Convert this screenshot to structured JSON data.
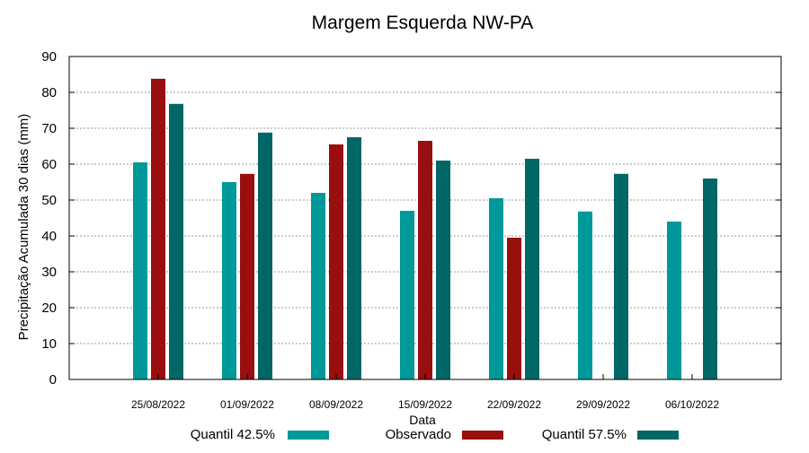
{
  "chart_data": {
    "type": "bar",
    "title": "Margem Esquerda NW-PA",
    "xlabel": "Data",
    "ylabel": "Precipitação Acumulada 30 dias (mm)",
    "ylim": [
      0,
      90
    ],
    "yticks": [
      0,
      10,
      20,
      30,
      40,
      50,
      60,
      70,
      80,
      90
    ],
    "grid": true,
    "legend_position": "bottom",
    "categories": [
      "25/08/2022",
      "01/09/2022",
      "08/09/2022",
      "15/09/2022",
      "22/09/2022",
      "29/09/2022",
      "06/10/2022"
    ],
    "series": [
      {
        "name": "Quantil 42.5%",
        "color": "#009999",
        "values": [
          60.5,
          55,
          52,
          47,
          50.5,
          46.8,
          44
        ]
      },
      {
        "name": "Observado",
        "color": "#990f0f",
        "values": [
          83.8,
          57.3,
          65.5,
          66.5,
          39.5,
          null,
          null
        ]
      },
      {
        "name": "Quantil 57.5%",
        "color": "#006666",
        "values": [
          76.8,
          68.8,
          67.5,
          61,
          61.5,
          57.3,
          56
        ]
      }
    ]
  }
}
